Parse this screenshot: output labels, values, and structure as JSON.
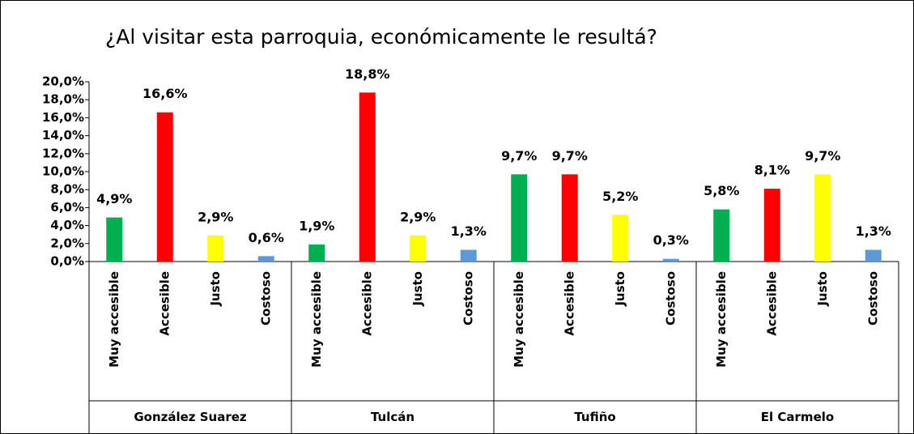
{
  "chart_data": {
    "type": "bar",
    "title": "¿Al visitar esta parroquia, económicamente le resultá?",
    "groups": [
      {
        "name": "González Suarez",
        "categories": [
          "Muy accesible",
          "Accesible",
          "Justo",
          "Costoso"
        ]
      },
      {
        "name": "Tulcán",
        "categories": [
          "Muy accesible",
          "Accesible",
          "Justo",
          "Costoso"
        ]
      },
      {
        "name": "Tufiño",
        "categories": [
          "Muy accesible",
          "Accesible",
          "Justo",
          "Costoso"
        ]
      },
      {
        "name": "El Carmelo",
        "categories": [
          "Muy accesible",
          "Accesible",
          "Justo",
          "Costoso"
        ]
      }
    ],
    "values": [
      4.9,
      16.6,
      2.9,
      0.6,
      1.9,
      18.8,
      2.9,
      1.3,
      9.7,
      9.7,
      5.2,
      0.3,
      5.8,
      8.1,
      9.7,
      1.3
    ],
    "value_labels": [
      "4,9%",
      "16,6%",
      "2,9%",
      "0,6%",
      "1,9%",
      "18,8%",
      "2,9%",
      "1,3%",
      "9,7%",
      "9,7%",
      "5,2%",
      "0,3%",
      "5,8%",
      "8,1%",
      "9,7%",
      "1,3%"
    ],
    "colors": [
      "#00b050",
      "#ff0000",
      "#ffff00",
      "#5b9bd5",
      "#00b050",
      "#ff0000",
      "#ffff00",
      "#5b9bd5",
      "#00b050",
      "#ff0000",
      "#ffff00",
      "#5b9bd5",
      "#00b050",
      "#ff0000",
      "#ffff00",
      "#5b9bd5"
    ],
    "ylim": [
      0,
      20
    ],
    "yticks": [
      {
        "value": 0,
        "label": "0,0%"
      },
      {
        "value": 2,
        "label": "2,0%"
      },
      {
        "value": 4,
        "label": "4,0%"
      },
      {
        "value": 6,
        "label": "6,0%"
      },
      {
        "value": 8,
        "label": "8,0%"
      },
      {
        "value": 10,
        "label": "10,0%"
      },
      {
        "value": 12,
        "label": "12,0%"
      },
      {
        "value": 14,
        "label": "14,0%"
      },
      {
        "value": 16,
        "label": "16,0%"
      },
      {
        "value": 18,
        "label": "18,0%"
      },
      {
        "value": 20,
        "label": "20,0%"
      }
    ],
    "grid": false
  }
}
